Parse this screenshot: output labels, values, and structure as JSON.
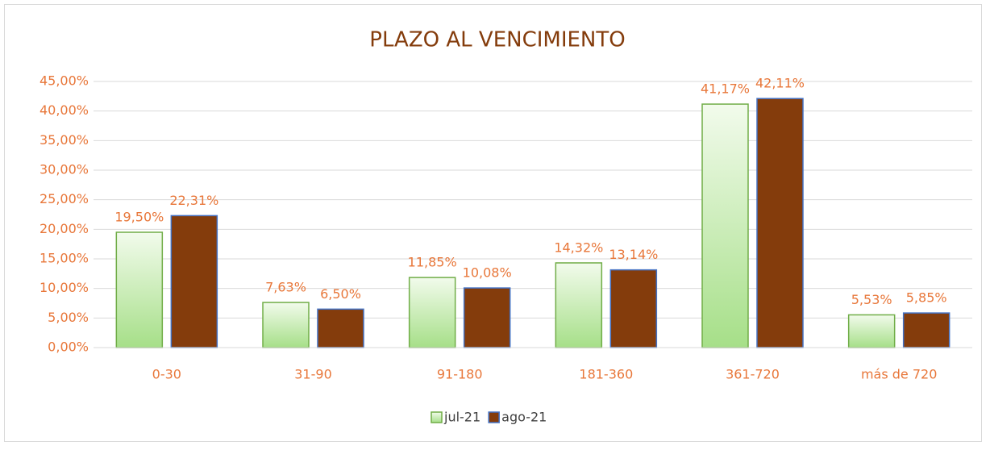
{
  "chart_data": {
    "type": "bar",
    "title": "PLAZO AL VENCIMIENTO",
    "categories": [
      "0-30",
      "31-90",
      "91-180",
      "181-360",
      "361-720",
      "más de 720"
    ],
    "series": [
      {
        "name": "jul-21",
        "color": "#a6df88",
        "edgecolor": "#70ad47",
        "values": [
          19.5,
          7.63,
          11.85,
          14.32,
          41.17,
          5.53
        ],
        "value_labels": [
          "19,50%",
          "7,63%",
          "11,85%",
          "14,32%",
          "41,17%",
          "5,53%"
        ]
      },
      {
        "name": "ago-21",
        "color": "#843c0c",
        "edgecolor": "#4472c4",
        "values": [
          22.31,
          6.5,
          10.08,
          13.14,
          42.11,
          5.85
        ],
        "value_labels": [
          "22,31%",
          "6,50%",
          "10,08%",
          "13,14%",
          "42,11%",
          "5,85%"
        ]
      }
    ],
    "ylim": [
      0,
      45
    ],
    "yticks": [
      {
        "value": 0,
        "label": "0,00%"
      },
      {
        "value": 5,
        "label": "5,00%"
      },
      {
        "value": 10,
        "label": "10,00%"
      },
      {
        "value": 15,
        "label": "15,00%"
      },
      {
        "value": 20,
        "label": "20,00%"
      },
      {
        "value": 25,
        "label": "25,00%"
      },
      {
        "value": 30,
        "label": "30,00%"
      },
      {
        "value": 35,
        "label": "35,00%"
      },
      {
        "value": 40,
        "label": "40,00%"
      },
      {
        "value": 45,
        "label": "45,00%"
      }
    ],
    "grid": true,
    "legend": "bottom"
  }
}
